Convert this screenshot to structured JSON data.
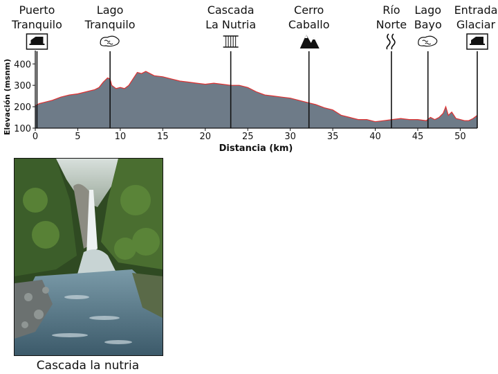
{
  "chart_data": {
    "type": "area",
    "xlabel": "Distancia (km)",
    "ylabel": "Elevación (msnm)",
    "xlim": [
      0,
      52
    ],
    "ylim": [
      100,
      430
    ],
    "xticks": [
      0,
      5,
      10,
      15,
      20,
      25,
      30,
      35,
      40,
      45,
      50
    ],
    "yticks": [
      100,
      200,
      300,
      400
    ],
    "grid": false,
    "fill_color": "#6e7b88",
    "line_color": "#e03030",
    "series": [
      {
        "x": [
          0,
          0.5,
          1,
          2,
          3,
          4,
          5,
          6,
          7,
          7.5,
          8,
          8.5,
          8.8,
          9,
          9.5,
          10,
          10.5,
          11,
          11.5,
          12,
          12.5,
          13,
          13.5,
          14,
          15,
          16,
          17,
          18,
          19,
          20,
          21,
          22,
          23,
          24,
          25,
          26,
          27,
          28,
          29,
          30,
          31,
          32,
          33,
          34,
          35,
          36,
          37,
          38,
          39,
          40,
          41,
          42,
          43,
          44,
          45,
          46,
          46.5,
          47,
          47.5,
          48,
          48.3,
          48.6,
          49,
          49.5,
          50,
          50.5,
          51,
          51.5,
          52
        ],
        "y": [
          205,
          215,
          220,
          230,
          245,
          255,
          260,
          270,
          280,
          290,
          315,
          335,
          330,
          300,
          285,
          290,
          285,
          300,
          330,
          360,
          355,
          365,
          355,
          345,
          340,
          330,
          320,
          315,
          310,
          305,
          310,
          305,
          300,
          300,
          290,
          270,
          255,
          250,
          245,
          240,
          230,
          220,
          210,
          195,
          185,
          160,
          150,
          140,
          140,
          130,
          135,
          140,
          145,
          140,
          140,
          135,
          150,
          140,
          150,
          170,
          200,
          160,
          175,
          145,
          140,
          135,
          135,
          145,
          160
        ]
      }
    ]
  },
  "waypoints": [
    {
      "label_lines": [
        "Puerto",
        "Tranquilo"
      ],
      "km": 0.2,
      "icon": "house-icon"
    },
    {
      "label_lines": [
        "Lago",
        "Tranquilo"
      ],
      "km": 8.8,
      "icon": "lake-icon"
    },
    {
      "label_lines": [
        "Cascada",
        "La Nutria"
      ],
      "km": 23,
      "icon": "waterfall-icon"
    },
    {
      "label_lines": [
        "Cerro",
        "Caballo"
      ],
      "km": 32.2,
      "icon": "mountain-icon"
    },
    {
      "label_lines": [
        "Río",
        "Norte"
      ],
      "km": 41.9,
      "icon": "river-icon"
    },
    {
      "label_lines": [
        "Lago",
        "Bayo"
      ],
      "km": 46.2,
      "icon": "lake-icon"
    },
    {
      "label_lines": [
        "Entrada",
        "Glaciar"
      ],
      "km": 52,
      "icon": "house-icon"
    }
  ],
  "photo": {
    "caption": "Cascada la nutria",
    "subject": "waterfall-photo"
  }
}
